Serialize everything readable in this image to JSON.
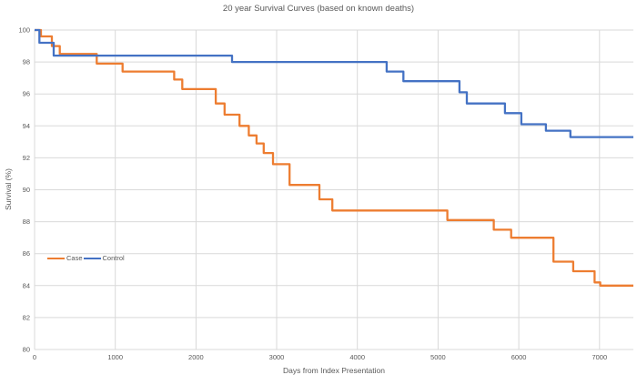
{
  "chart_data": {
    "type": "line",
    "subtype": "step-after-survival-curve",
    "title": "20 year Survival Curves (based on known deaths)",
    "xlabel": "Days from Index Presentation",
    "ylabel": "Survival (%)",
    "xlim": [
      0,
      7420
    ],
    "ylim": [
      80,
      100
    ],
    "x_ticks": [
      0,
      1000,
      2000,
      3000,
      4000,
      5000,
      6000,
      7000
    ],
    "y_ticks": [
      80,
      82,
      84,
      86,
      88,
      90,
      92,
      94,
      96,
      98,
      100
    ],
    "grid": true,
    "gridline_color": "#d9d9d9",
    "text_color": "#595959",
    "legend_position": "inside-bottom-left",
    "series": [
      {
        "name": "Case",
        "color": "#ED7D31",
        "steps": [
          [
            0,
            100
          ],
          [
            79,
            99.6
          ],
          [
            214,
            99.0
          ],
          [
            312,
            98.5
          ],
          [
            770,
            97.9
          ],
          [
            1090,
            97.4
          ],
          [
            1730,
            96.9
          ],
          [
            1830,
            96.3
          ],
          [
            2245,
            95.4
          ],
          [
            2355,
            94.7
          ],
          [
            2540,
            94.0
          ],
          [
            2655,
            93.4
          ],
          [
            2750,
            92.9
          ],
          [
            2840,
            92.3
          ],
          [
            2955,
            91.6
          ],
          [
            3160,
            90.3
          ],
          [
            3530,
            89.4
          ],
          [
            3690,
            88.7
          ],
          [
            5115,
            88.1
          ],
          [
            5690,
            87.5
          ],
          [
            5905,
            87.0
          ],
          [
            6430,
            85.5
          ],
          [
            6675,
            84.9
          ],
          [
            6940,
            84.2
          ],
          [
            7010,
            84.0
          ]
        ]
      },
      {
        "name": "Control",
        "color": "#4472C4",
        "steps": [
          [
            0,
            100
          ],
          [
            60,
            99.2
          ],
          [
            237,
            98.4
          ],
          [
            2447,
            98.0
          ],
          [
            4363,
            97.4
          ],
          [
            4570,
            96.8
          ],
          [
            5265,
            96.1
          ],
          [
            5356,
            95.4
          ],
          [
            5829,
            94.8
          ],
          [
            6032,
            94.1
          ],
          [
            6336,
            93.7
          ],
          [
            6640,
            93.3
          ]
        ]
      }
    ]
  }
}
